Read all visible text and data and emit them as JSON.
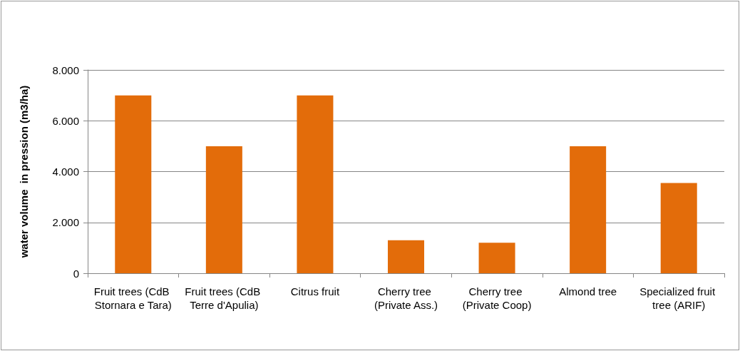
{
  "chart_data": {
    "type": "bar",
    "ylabel": "water volume  in pression (m3/ha)",
    "categories": [
      "Fruit trees (CdB Stornara e Tara)",
      "Fruit trees (CdB Terre d'Apulia)",
      "Citrus fruit",
      "Cherry tree (Private Ass.)",
      "Cherry tree (Private Coop)",
      "Almond tree",
      "Specialized fruit tree (ARIF)"
    ],
    "values": [
      7000,
      5000,
      7000,
      1300,
      1200,
      5000,
      3550
    ],
    "color": "#e36c0a",
    "ylim": [
      0,
      8000
    ],
    "yticks": [
      0,
      {
        "value": 2000,
        "label": "2.000"
      },
      {
        "value": 4000,
        "label": "4.000"
      },
      {
        "value": 6000,
        "label": "6.000"
      },
      {
        "value": 8000,
        "label": "8.000"
      }
    ],
    "grid": "y"
  }
}
